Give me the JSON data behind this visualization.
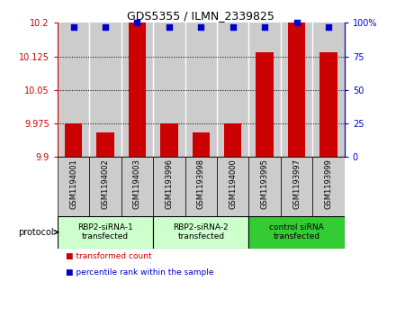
{
  "title": "GDS5355 / ILMN_2339825",
  "samples": [
    "GSM1194001",
    "GSM1194002",
    "GSM1194003",
    "GSM1193996",
    "GSM1193998",
    "GSM1194000",
    "GSM1193995",
    "GSM1193997",
    "GSM1193999"
  ],
  "transformed_counts": [
    9.975,
    9.955,
    10.2,
    9.975,
    9.955,
    9.975,
    10.135,
    10.2,
    10.135
  ],
  "percentile_ranks": [
    97,
    97,
    100,
    97,
    97,
    97,
    97,
    100,
    97
  ],
  "ylim_left": [
    9.9,
    10.2
  ],
  "ylim_right": [
    0,
    100
  ],
  "yticks_left": [
    9.9,
    9.975,
    10.05,
    10.125,
    10.2
  ],
  "yticks_right": [
    0,
    25,
    50,
    75,
    100
  ],
  "ytick_labels_left": [
    "9.9",
    "9.975",
    "10.05",
    "10.125",
    "10.2"
  ],
  "ytick_labels_right": [
    "0",
    "25",
    "50",
    "75",
    "100%"
  ],
  "grid_lines": [
    9.975,
    10.05,
    10.125
  ],
  "protocols": [
    {
      "label": "RBP2-siRNA-1\ntransfected",
      "start": 0,
      "end": 3,
      "color": "#ccffcc"
    },
    {
      "label": "RBP2-siRNA-2\ntransfected",
      "start": 3,
      "end": 6,
      "color": "#ccffcc"
    },
    {
      "label": "control siRNA\ntransfected",
      "start": 6,
      "end": 9,
      "color": "#33cc33"
    }
  ],
  "bar_color": "#cc0000",
  "dot_color": "#0000cc",
  "bar_width": 0.55,
  "background_color": "#ffffff",
  "panel_bg": "#cccccc",
  "protocol_arrow_label": "protocol",
  "legend_items": [
    {
      "color": "#cc0000",
      "label": "transformed count"
    },
    {
      "color": "#0000cc",
      "label": "percentile rank within the sample"
    }
  ]
}
